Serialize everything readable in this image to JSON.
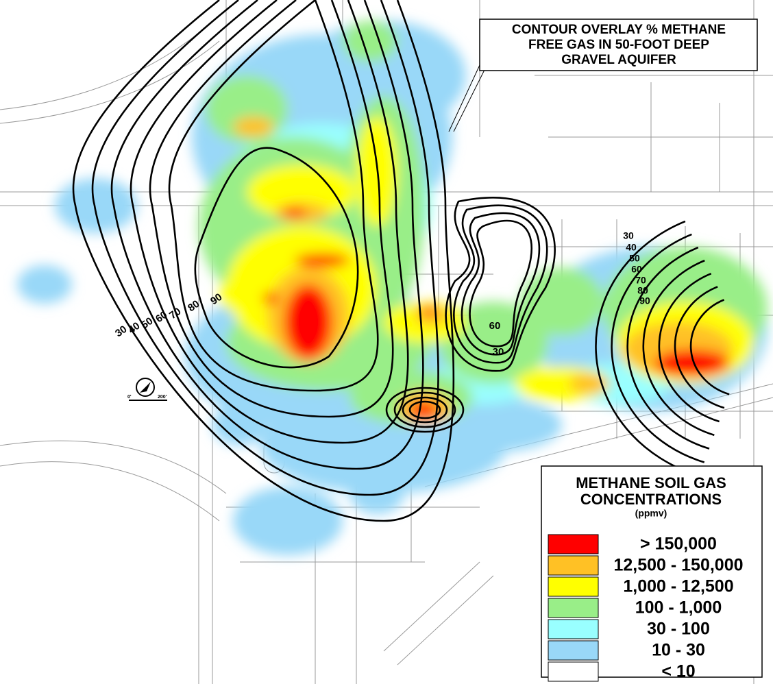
{
  "title": [
    "CONTOUR OVERLAY % METHANE",
    "FREE GAS IN 50-FOOT DEEP",
    "GRAVEL AQUIFER"
  ],
  "legend": {
    "title": [
      "METHANE SOIL GAS",
      "CONCENTRATIONS"
    ],
    "unit": "(ppmv)",
    "items": [
      {
        "label": "> 150,000",
        "color": "#ff0000"
      },
      {
        "label": "12,500 - 150,000",
        "color": "#ffc125"
      },
      {
        "label": "1,000 - 12,500",
        "color": "#ffff00"
      },
      {
        "label": "100 - 1,000",
        "color": "#99ee88"
      },
      {
        "label": "30 - 100",
        "color": "#99ffff"
      },
      {
        "label": "10 - 30",
        "color": "#99d8f8"
      },
      {
        "label": "< 10",
        "color": "#ffffff"
      }
    ]
  },
  "contours": {
    "west": [
      30,
      40,
      50,
      60,
      70,
      80,
      90
    ],
    "middle": [
      60,
      30
    ],
    "east": [
      30,
      40,
      50,
      60,
      70,
      80,
      90
    ]
  },
  "scale_bar": [
    "0'",
    "200'"
  ]
}
